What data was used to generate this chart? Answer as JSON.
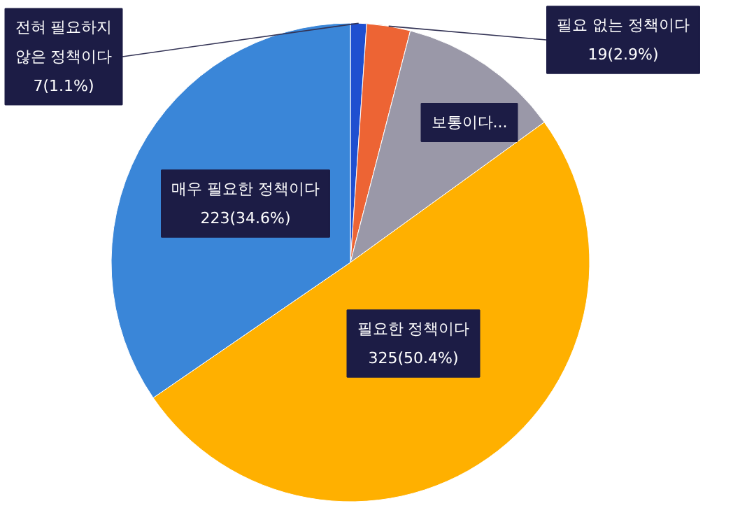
{
  "chart_data": {
    "type": "pie",
    "categories": [
      "전혀 필요하지 않은 정책이다",
      "필요 없는 정책이다",
      "보통이다...",
      "필요한 정책이다",
      "매우 필요한 정책이다"
    ],
    "values": [
      7,
      19,
      71,
      325,
      223
    ],
    "colors": [
      "#1f4fd0",
      "#ed6434",
      "#9a98a8",
      "#ffb000",
      "#3a86d8"
    ],
    "value_labels": [
      "7(1.1%)",
      "19(2.9%)",
      null,
      "325(50.4%)",
      "223(34.6%)"
    ]
  }
}
